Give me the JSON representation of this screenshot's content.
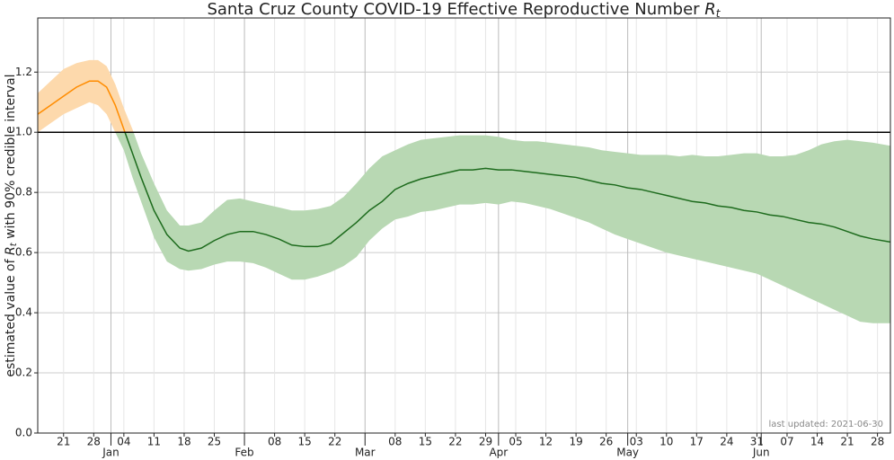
{
  "chart_data": {
    "type": "line-band",
    "title": {
      "text": "Santa Cruz County COVID-19 Effective Reproductive Number ",
      "symbol": "R",
      "subscript": "t"
    },
    "ylabel": {
      "before": "estimated value of ",
      "symbol": "R",
      "subscript": "t",
      "after": " with 90% credible interval"
    },
    "annotation": "last updated: 2021-06-30",
    "x": [
      0,
      3,
      6,
      9,
      12,
      14,
      16,
      18,
      20,
      22,
      24,
      27,
      30,
      33,
      35,
      38,
      41,
      44,
      47,
      50,
      53,
      56,
      59,
      62,
      65,
      68,
      71,
      74,
      77,
      80,
      83,
      86,
      89,
      92,
      95,
      98,
      101,
      104,
      107,
      110,
      113,
      116,
      119,
      122,
      125,
      128,
      131,
      134,
      137,
      140,
      143,
      146,
      149,
      152,
      155,
      158,
      161,
      164,
      167,
      170,
      173,
      176,
      179,
      182,
      185,
      188,
      191,
      194,
      198
    ],
    "values": [
      1.06,
      1.09,
      1.12,
      1.15,
      1.17,
      1.17,
      1.15,
      1.09,
      1.01,
      0.93,
      0.85,
      0.74,
      0.66,
      0.615,
      0.605,
      0.615,
      0.64,
      0.66,
      0.67,
      0.67,
      0.66,
      0.645,
      0.625,
      0.62,
      0.62,
      0.63,
      0.665,
      0.7,
      0.74,
      0.77,
      0.81,
      0.83,
      0.845,
      0.855,
      0.865,
      0.875,
      0.875,
      0.88,
      0.875,
      0.875,
      0.87,
      0.865,
      0.86,
      0.855,
      0.85,
      0.84,
      0.83,
      0.825,
      0.815,
      0.81,
      0.8,
      0.79,
      0.78,
      0.77,
      0.765,
      0.755,
      0.75,
      0.74,
      0.735,
      0.725,
      0.72,
      0.71,
      0.7,
      0.695,
      0.685,
      0.67,
      0.655,
      0.645,
      0.635
    ],
    "lower": [
      1.0,
      1.03,
      1.06,
      1.08,
      1.1,
      1.09,
      1.06,
      1.0,
      0.94,
      0.85,
      0.77,
      0.65,
      0.57,
      0.545,
      0.54,
      0.545,
      0.56,
      0.57,
      0.57,
      0.565,
      0.55,
      0.53,
      0.51,
      0.51,
      0.52,
      0.535,
      0.555,
      0.585,
      0.64,
      0.68,
      0.71,
      0.72,
      0.735,
      0.74,
      0.75,
      0.76,
      0.76,
      0.765,
      0.76,
      0.77,
      0.765,
      0.755,
      0.745,
      0.73,
      0.715,
      0.7,
      0.68,
      0.66,
      0.645,
      0.63,
      0.615,
      0.6,
      0.59,
      0.58,
      0.57,
      0.56,
      0.55,
      0.54,
      0.53,
      0.51,
      0.49,
      0.47,
      0.45,
      0.43,
      0.41,
      0.39,
      0.37,
      0.365,
      0.365
    ],
    "upper": [
      1.13,
      1.17,
      1.21,
      1.23,
      1.24,
      1.24,
      1.22,
      1.16,
      1.08,
      1.01,
      0.93,
      0.83,
      0.74,
      0.69,
      0.69,
      0.7,
      0.74,
      0.775,
      0.78,
      0.77,
      0.76,
      0.75,
      0.74,
      0.74,
      0.745,
      0.755,
      0.785,
      0.83,
      0.88,
      0.92,
      0.94,
      0.96,
      0.975,
      0.98,
      0.985,
      0.99,
      0.99,
      0.99,
      0.985,
      0.975,
      0.97,
      0.97,
      0.965,
      0.96,
      0.955,
      0.95,
      0.94,
      0.935,
      0.93,
      0.925,
      0.925,
      0.925,
      0.92,
      0.925,
      0.92,
      0.92,
      0.925,
      0.93,
      0.93,
      0.92,
      0.92,
      0.925,
      0.94,
      0.96,
      0.97,
      0.975,
      0.97,
      0.965,
      0.955
    ],
    "reference_line": 1,
    "colors": {
      "above_line": "#ff8c00",
      "above_band": "#fdd9ac",
      "below_line": "#1d6b1d",
      "below_band": "#b8d8b3",
      "reference": "#000000"
    },
    "xlim": [
      0,
      198
    ],
    "ylim": [
      0,
      1.38
    ],
    "yticks": [
      {
        "value": 0,
        "label": "0.0"
      },
      0.2,
      0.4,
      0.6,
      0.8,
      {
        "value": 1,
        "label": "1.0"
      },
      1.2
    ],
    "xticks": [
      {
        "value": 6,
        "label": "21"
      },
      {
        "value": 13,
        "label": "28"
      },
      {
        "value": 20,
        "label": "04"
      },
      {
        "value": 27,
        "label": "11"
      },
      {
        "value": 34,
        "label": "18"
      },
      {
        "value": 41,
        "label": "25"
      },
      {
        "value": 55,
        "label": "08"
      },
      {
        "value": 62,
        "label": "15"
      },
      {
        "value": 69,
        "label": "22"
      },
      {
        "value": 83,
        "label": "08"
      },
      {
        "value": 90,
        "label": "15"
      },
      {
        "value": 97,
        "label": "22"
      },
      {
        "value": 104,
        "label": "29"
      },
      {
        "value": 111,
        "label": "05"
      },
      {
        "value": 118,
        "label": "12"
      },
      {
        "value": 125,
        "label": "19"
      },
      {
        "value": 132,
        "label": "26"
      },
      {
        "value": 139,
        "label": "03"
      },
      {
        "value": 146,
        "label": "10"
      },
      {
        "value": 153,
        "label": "17"
      },
      {
        "value": 160,
        "label": "24"
      },
      {
        "value": 167,
        "label": "31"
      },
      {
        "value": 174,
        "label": "07"
      },
      {
        "value": 181,
        "label": "14"
      },
      {
        "value": 188,
        "label": "21"
      },
      {
        "value": 195,
        "label": "28"
      }
    ],
    "xticks_major": [
      {
        "value": 17,
        "label": "Jan"
      },
      {
        "value": 48,
        "label": "Feb"
      },
      {
        "value": 76,
        "label": "Mar"
      },
      {
        "value": 107,
        "label": "Apr"
      },
      {
        "value": 137,
        "label": "May"
      },
      {
        "value": 168,
        "label": "Jun"
      }
    ],
    "grid": true
  }
}
